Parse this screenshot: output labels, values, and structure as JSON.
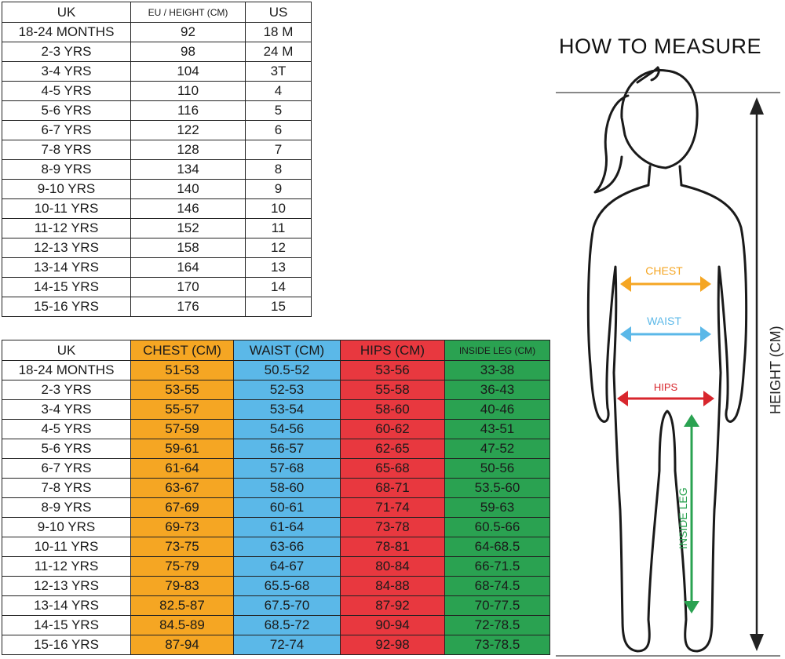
{
  "conversion_table": {
    "headers": [
      "UK",
      "EU / HEIGHT (CM)",
      "US"
    ],
    "rows": [
      [
        "18-24 MONTHS",
        "92",
        "18 M"
      ],
      [
        "2-3 YRS",
        "98",
        "24 M"
      ],
      [
        "3-4 YRS",
        "104",
        "3T"
      ],
      [
        "4-5 YRS",
        "110",
        "4"
      ],
      [
        "5-6 YRS",
        "116",
        "5"
      ],
      [
        "6-7 YRS",
        "122",
        "6"
      ],
      [
        "7-8 YRS",
        "128",
        "7"
      ],
      [
        "8-9 YRS",
        "134",
        "8"
      ],
      [
        "9-10 YRS",
        "140",
        "9"
      ],
      [
        "10-11 YRS",
        "146",
        "10"
      ],
      [
        "11-12 YRS",
        "152",
        "11"
      ],
      [
        "12-13 YRS",
        "158",
        "12"
      ],
      [
        "13-14 YRS",
        "164",
        "13"
      ],
      [
        "14-15 YRS",
        "170",
        "14"
      ],
      [
        "15-16 YRS",
        "176",
        "15"
      ]
    ]
  },
  "measurement_table": {
    "headers": [
      "UK",
      "CHEST (CM)",
      "WAIST (CM)",
      "HIPS (CM)",
      "INSIDE LEG (CM)"
    ],
    "rows": [
      [
        "18-24 MONTHS",
        "51-53",
        "50.5-52",
        "53-56",
        "33-38"
      ],
      [
        "2-3 YRS",
        "53-55",
        "52-53",
        "55-58",
        "36-43"
      ],
      [
        "3-4 YRS",
        "55-57",
        "53-54",
        "58-60",
        "40-46"
      ],
      [
        "4-5 YRS",
        "57-59",
        "54-56",
        "60-62",
        "43-51"
      ],
      [
        "5-6 YRS",
        "59-61",
        "56-57",
        "62-65",
        "47-52"
      ],
      [
        "6-7 YRS",
        "61-64",
        "57-68",
        "65-68",
        "50-56"
      ],
      [
        "7-8 YRS",
        "63-67",
        "58-60",
        "68-71",
        "53.5-60"
      ],
      [
        "8-9 YRS",
        "67-69",
        "60-61",
        "71-74",
        "59-63"
      ],
      [
        "9-10 YRS",
        "69-73",
        "61-64",
        "73-78",
        "60.5-66"
      ],
      [
        "10-11 YRS",
        "73-75",
        "63-66",
        "78-81",
        "64-68.5"
      ],
      [
        "11-12 YRS",
        "75-79",
        "64-67",
        "80-84",
        "66-71.5"
      ],
      [
        "12-13 YRS",
        "79-83",
        "65.5-68",
        "84-88",
        "68-74.5"
      ],
      [
        "13-14 YRS",
        "82.5-87",
        "67.5-70",
        "87-92",
        "70-77.5"
      ],
      [
        "14-15 YRS",
        "84.5-89",
        "68.5-72",
        "90-94",
        "72-78.5"
      ],
      [
        "15-16 YRS",
        "87-94",
        "72-74",
        "92-98",
        "73-78.5"
      ]
    ]
  },
  "how_to_measure": {
    "title": "HOW TO MEASURE",
    "chest_label": "CHEST",
    "waist_label": "WAIST",
    "hips_label": "HIPS",
    "inside_leg_label": "INSIDE LEG",
    "height_label": "HEIGHT (CM)"
  },
  "colors": {
    "chest": "#f5a623",
    "waist": "#5bb8e8",
    "hips": "#e8383f",
    "inside_leg": "#2aa251"
  }
}
